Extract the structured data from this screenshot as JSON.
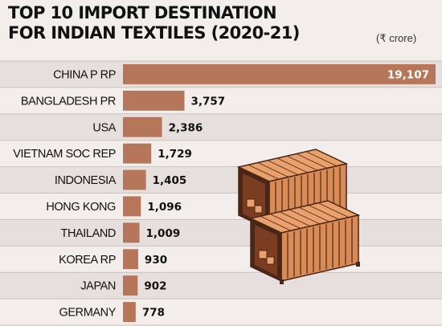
{
  "title_line1": "TOP 10 IMPORT DESTINATION",
  "title_line2": "FOR INDIAN TEXTILES (2020-21)",
  "unit_label": "(₹ crore)",
  "colors": {
    "bar": "#b57659",
    "background": "#f3eeec",
    "row_alt": "#e6dfdd",
    "divider": "#c9c0bd",
    "text": "#111111",
    "container_orange": "#d98a55",
    "container_dark": "#4a2616"
  },
  "illustration": "shipping-containers-icon",
  "chart_data": {
    "type": "bar",
    "orientation": "horizontal",
    "title": "TOP 10 IMPORT DESTINATION FOR INDIAN TEXTILES (2020-21)",
    "unit": "(₹ crore)",
    "categories": [
      "CHINA P RP",
      "BANGLADESH PR",
      "USA",
      "VIETNAM SOC REP",
      "INDONESIA",
      "HONG KONG",
      "THAILAND",
      "KOREA RP",
      "JAPAN",
      "GERMANY"
    ],
    "values": [
      19107,
      3757,
      2386,
      1729,
      1405,
      1096,
      1009,
      930,
      902,
      778
    ],
    "value_labels": [
      "19,107",
      "3,757",
      "2,386",
      "1,729",
      "1,405",
      "1,096",
      "1,009",
      "930",
      "902",
      "778"
    ],
    "xlim": [
      0,
      19500
    ],
    "grid": false,
    "legend": "none"
  }
}
